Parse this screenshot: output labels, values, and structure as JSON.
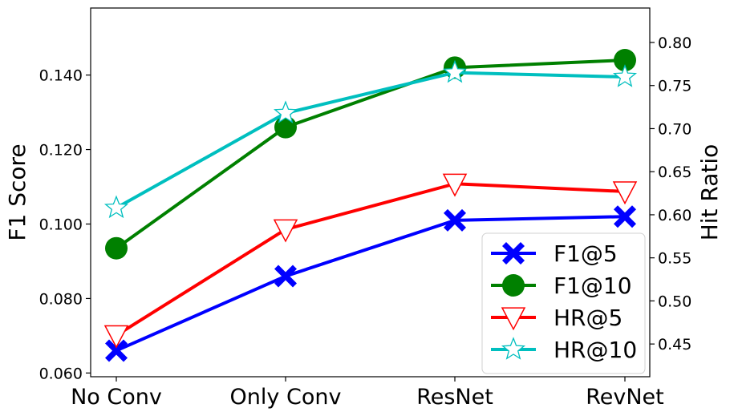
{
  "chart_data": {
    "type": "line",
    "categories": [
      "No Conv",
      "Only Conv",
      "ResNet",
      "RevNet"
    ],
    "left_axis": {
      "label": "F1 Score",
      "ylim": [
        0.059,
        0.158
      ],
      "ticks": [
        0.06,
        0.08,
        0.1,
        0.12,
        0.14
      ],
      "tick_labels": [
        "0.060",
        "0.080",
        "0.100",
        "0.120",
        "0.140"
      ]
    },
    "right_axis": {
      "label": "Hit Ratio",
      "ylim": [
        0.412,
        0.84
      ],
      "ticks": [
        0.45,
        0.5,
        0.55,
        0.6,
        0.65,
        0.7,
        0.75,
        0.8
      ],
      "tick_labels": [
        "0.45",
        "0.50",
        "0.55",
        "0.60",
        "0.65",
        "0.70",
        "0.75",
        "0.80"
      ]
    },
    "series": [
      {
        "name": "F1@5",
        "axis": "left",
        "color": "#0000ff",
        "marker": "x-icon",
        "values": [
          0.066,
          0.086,
          0.101,
          0.102
        ]
      },
      {
        "name": "F1@10",
        "axis": "left",
        "color": "#008000",
        "marker": "circle-icon",
        "values": [
          0.0935,
          0.126,
          0.142,
          0.144
        ]
      },
      {
        "name": "HR@5",
        "axis": "right",
        "color": "#ff0000",
        "marker": "triangle-down-icon",
        "values": [
          0.46,
          0.583,
          0.636,
          0.627
        ]
      },
      {
        "name": "HR@10",
        "axis": "right",
        "color": "#00bfbf",
        "marker": "star-icon",
        "values": [
          0.608,
          0.718,
          0.765,
          0.76
        ]
      }
    ],
    "legend": {
      "position": "bottom-right"
    },
    "grid": false
  }
}
